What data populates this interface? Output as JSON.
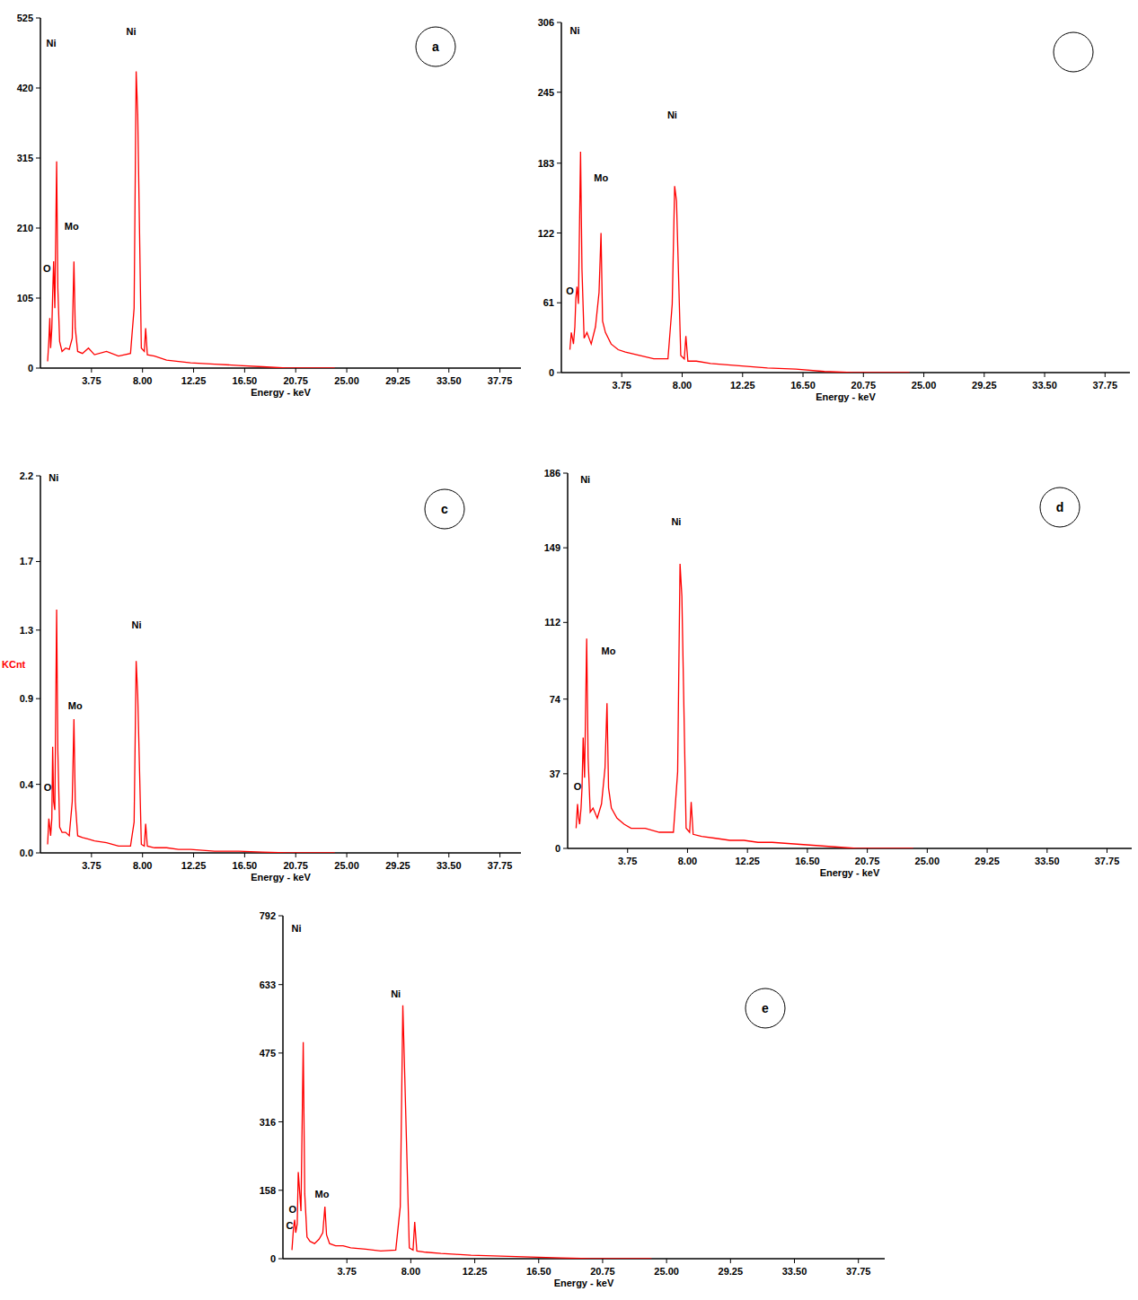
{
  "chart_data": [
    {
      "type": "line",
      "panel_label": "a",
      "x_label": "Energy - keV",
      "color": "#ff0000",
      "xlim": [
        -0.5,
        39.5
      ],
      "xticks": [
        3.75,
        {
          "value": 8,
          "label": "8.00"
        },
        12.25,
        {
          "value": 16.5,
          "label": "16.50"
        },
        20.75,
        {
          "value": 25,
          "label": "25.00"
        },
        29.25,
        {
          "value": 33.5,
          "label": "33.50"
        },
        37.75
      ],
      "ylim": [
        0,
        525
      ],
      "yticks": [
        0,
        105,
        210,
        315,
        420,
        525
      ],
      "x": [
        0.1,
        0.2,
        0.28,
        0.35,
        0.45,
        0.52,
        0.6,
        0.7,
        0.85,
        0.95,
        1.1,
        1.3,
        1.6,
        1.9,
        2.15,
        2.29,
        2.4,
        2.6,
        3.0,
        3.5,
        4.0,
        5.0,
        6.0,
        7.0,
        7.3,
        7.47,
        7.6,
        7.9,
        8.15,
        8.26,
        8.4,
        9.0,
        10,
        11,
        12,
        13,
        14,
        16,
        18,
        20,
        24
      ],
      "values": [
        10,
        40,
        75,
        30,
        60,
        110,
        160,
        90,
        310,
        120,
        40,
        25,
        30,
        28,
        45,
        160,
        60,
        25,
        22,
        30,
        20,
        25,
        18,
        22,
        90,
        445,
        380,
        30,
        25,
        60,
        20,
        18,
        12,
        10,
        8,
        7,
        6,
        4,
        2,
        0,
        0
      ],
      "annotations": [
        {
          "text": "Ni",
          "x": 0.4,
          "y": 482
        },
        {
          "text": "Ni",
          "x": 7.05,
          "y": 500
        },
        {
          "text": "Mo",
          "x": 2.1,
          "y": 207
        },
        {
          "text": "O",
          "x": 0.05,
          "y": 144
        }
      ]
    },
    {
      "type": "line",
      "x_label": "Energy - keV",
      "color": "#ff0000",
      "xlim": [
        -0.5,
        39.5
      ],
      "xticks": [
        3.75,
        {
          "value": 8,
          "label": "8.00"
        },
        12.25,
        {
          "value": 16.5,
          "label": "16.50"
        },
        20.75,
        {
          "value": 25,
          "label": "25.00"
        },
        29.25,
        {
          "value": 33.5,
          "label": "33.50"
        },
        37.75
      ],
      "ylim": [
        0,
        306
      ],
      "yticks": [
        0,
        61,
        122,
        183,
        245,
        306
      ],
      "x": [
        0.1,
        0.2,
        0.28,
        0.35,
        0.45,
        0.52,
        0.6,
        0.7,
        0.85,
        0.95,
        1.1,
        1.3,
        1.6,
        1.9,
        2.15,
        2.29,
        2.4,
        2.6,
        3.0,
        3.5,
        4.0,
        5.0,
        6.0,
        7.0,
        7.3,
        7.47,
        7.6,
        7.9,
        8.15,
        8.26,
        8.4,
        9.0,
        10,
        11,
        12,
        13,
        14,
        16,
        18,
        20,
        24
      ],
      "values": [
        20,
        35,
        30,
        25,
        40,
        65,
        75,
        60,
        193,
        90,
        30,
        35,
        25,
        40,
        70,
        122,
        45,
        35,
        25,
        20,
        18,
        15,
        12,
        12,
        60,
        163,
        150,
        15,
        12,
        32,
        10,
        10,
        8,
        7,
        6,
        5,
        4,
        3,
        1,
        0,
        0
      ],
      "annotations": [
        {
          "text": "Ni",
          "x": 0.45,
          "y": 296
        },
        {
          "text": "Ni",
          "x": 7.3,
          "y": 222
        },
        {
          "text": "Mo",
          "x": 2.3,
          "y": 167
        },
        {
          "text": "O",
          "x": 0.1,
          "y": 68
        }
      ]
    },
    {
      "type": "line",
      "panel_label": "c",
      "x_label": "Energy - keV",
      "y_label": "KCnt",
      "color": "#ff0000",
      "xlim": [
        -0.5,
        39.5
      ],
      "xticks": [
        3.75,
        {
          "value": 8,
          "label": "8.00"
        },
        12.25,
        {
          "value": 16.5,
          "label": "16.50"
        },
        20.75,
        {
          "value": 25,
          "label": "25.00"
        },
        29.25,
        {
          "value": 33.5,
          "label": "33.50"
        },
        37.75
      ],
      "ylim": [
        0,
        2.2
      ],
      "yticks": [
        {
          "value": 0,
          "label": "0.0"
        },
        0.4,
        0.9,
        1.3,
        1.7,
        2.2
      ],
      "x": [
        0.1,
        0.2,
        0.28,
        0.35,
        0.45,
        0.52,
        0.6,
        0.7,
        0.85,
        0.95,
        1.1,
        1.3,
        1.6,
        1.9,
        2.15,
        2.29,
        2.4,
        2.6,
        3.0,
        3.5,
        4.0,
        5.0,
        6.0,
        7.0,
        7.3,
        7.47,
        7.6,
        7.9,
        8.15,
        8.26,
        8.4,
        9.0,
        10,
        11,
        12,
        13,
        14,
        16,
        18,
        20,
        24
      ],
      "values": [
        0.05,
        0.2,
        0.15,
        0.1,
        0.2,
        0.62,
        0.3,
        0.25,
        1.42,
        0.6,
        0.15,
        0.12,
        0.12,
        0.1,
        0.3,
        0.78,
        0.3,
        0.1,
        0.09,
        0.08,
        0.07,
        0.06,
        0.04,
        0.04,
        0.18,
        1.12,
        0.92,
        0.05,
        0.04,
        0.17,
        0.04,
        0.03,
        0.03,
        0.02,
        0.02,
        0.015,
        0.01,
        0.01,
        0.005,
        0,
        0
      ],
      "annotations": [
        {
          "text": "Ni",
          "x": 0.6,
          "y": 2.17
        },
        {
          "text": "Ni",
          "x": 7.5,
          "y": 1.31
        },
        {
          "text": "Mo",
          "x": 2.4,
          "y": 0.84
        },
        {
          "text": "O",
          "x": 0.1,
          "y": 0.36
        }
      ]
    },
    {
      "type": "line",
      "panel_label": "d",
      "x_label": "Energy - keV",
      "color": "#ff0000",
      "xlim": [
        -0.5,
        39.5
      ],
      "xticks": [
        3.75,
        {
          "value": 8,
          "label": "8.00"
        },
        12.25,
        {
          "value": 16.5,
          "label": "16.50"
        },
        20.75,
        {
          "value": 25,
          "label": "25.00"
        },
        29.25,
        {
          "value": 33.5,
          "label": "33.50"
        },
        37.75
      ],
      "ylim": [
        0,
        186
      ],
      "yticks": [
        0,
        37,
        74,
        112,
        149,
        186
      ],
      "x": [
        0.1,
        0.2,
        0.28,
        0.35,
        0.45,
        0.52,
        0.6,
        0.7,
        0.85,
        0.95,
        1.1,
        1.3,
        1.6,
        1.9,
        2.15,
        2.29,
        2.4,
        2.6,
        3.0,
        3.5,
        4.0,
        5.0,
        6.0,
        7.0,
        7.3,
        7.47,
        7.6,
        7.9,
        8.15,
        8.26,
        8.4,
        9.0,
        10,
        11,
        12,
        13,
        14,
        16,
        18,
        20,
        24
      ],
      "values": [
        10,
        22,
        15,
        12,
        20,
        30,
        55,
        35,
        104,
        45,
        18,
        20,
        15,
        22,
        40,
        72,
        30,
        20,
        15,
        12,
        10,
        10,
        8,
        8,
        38,
        141,
        125,
        10,
        8,
        23,
        7,
        6,
        5,
        4,
        4,
        3,
        3,
        2,
        1,
        0,
        0
      ],
      "annotations": [
        {
          "text": "Ni",
          "x": 0.75,
          "y": 181
        },
        {
          "text": "Ni",
          "x": 7.2,
          "y": 160
        },
        {
          "text": "Mo",
          "x": 2.4,
          "y": 96
        },
        {
          "text": "O",
          "x": 0.2,
          "y": 29
        }
      ]
    },
    {
      "type": "line",
      "panel_label": "e",
      "x_label": "Energy - keV",
      "color": "#ff0000",
      "xlim": [
        -0.5,
        39.5
      ],
      "xticks": [
        3.75,
        {
          "value": 8,
          "label": "8.00"
        },
        12.25,
        {
          "value": 16.5,
          "label": "16.50"
        },
        20.75,
        {
          "value": 25,
          "label": "25.00"
        },
        29.25,
        {
          "value": 33.5,
          "label": "33.50"
        },
        37.75
      ],
      "ylim": [
        0,
        792
      ],
      "yticks": [
        0,
        158,
        316,
        475,
        633,
        792
      ],
      "x": [
        0.1,
        0.2,
        0.28,
        0.35,
        0.45,
        0.52,
        0.6,
        0.7,
        0.85,
        0.95,
        1.1,
        1.3,
        1.6,
        1.9,
        2.15,
        2.29,
        2.4,
        2.6,
        3.0,
        3.5,
        4.0,
        5.0,
        6.0,
        7.0,
        7.3,
        7.47,
        7.6,
        7.9,
        8.15,
        8.26,
        8.4,
        9.0,
        10,
        11,
        12,
        13,
        14,
        16,
        18,
        20,
        24
      ],
      "values": [
        20,
        70,
        90,
        60,
        80,
        200,
        160,
        110,
        500,
        150,
        50,
        40,
        35,
        45,
        60,
        120,
        55,
        35,
        30,
        30,
        25,
        22,
        18,
        20,
        120,
        585,
        420,
        25,
        20,
        85,
        18,
        15,
        12,
        10,
        8,
        7,
        6,
        4,
        2,
        0,
        0
      ],
      "annotations": [
        {
          "text": "Ni",
          "x": 0.4,
          "y": 755
        },
        {
          "text": "Ni",
          "x": 7.0,
          "y": 603
        },
        {
          "text": "Mo",
          "x": 2.1,
          "y": 140
        },
        {
          "text": "O",
          "x": 0.15,
          "y": 105
        },
        {
          "text": "C",
          "x": -0.05,
          "y": 68
        }
      ]
    }
  ]
}
